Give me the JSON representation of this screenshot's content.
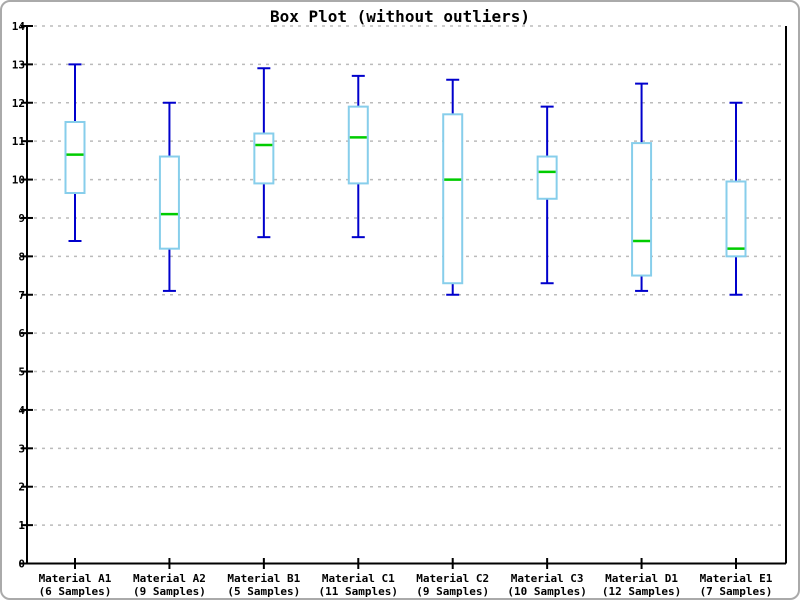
{
  "chart_data": {
    "type": "boxplot",
    "title": "Box Plot (without outliers)",
    "categories": [
      "Material A1",
      "Material A2",
      "Material B1",
      "Material C1",
      "Material C2",
      "Material C3",
      "Material D1",
      "Material E1"
    ],
    "sample_labels": [
      "(6 Samples)",
      "(9 Samples)",
      "(5 Samples)",
      "(11 Samples)",
      "(9 Samples)",
      "(10 Samples)",
      "(12 Samples)",
      "(7 Samples)"
    ],
    "sample_counts": [
      6,
      9,
      5,
      11,
      9,
      10,
      12,
      7
    ],
    "boxes": [
      {
        "category": "Material A1",
        "min": 8.4,
        "q1": 9.65,
        "median": 10.65,
        "q3": 11.5,
        "max": 13.0
      },
      {
        "category": "Material A2",
        "min": 7.1,
        "q1": 8.2,
        "median": 9.1,
        "q3": 10.6,
        "max": 12.0
      },
      {
        "category": "Material B1",
        "min": 8.5,
        "q1": 9.9,
        "median": 10.9,
        "q3": 11.2,
        "max": 12.9
      },
      {
        "category": "Material C1",
        "min": 8.5,
        "q1": 9.9,
        "median": 11.1,
        "q3": 11.9,
        "max": 12.7
      },
      {
        "category": "Material C2",
        "min": 7.0,
        "q1": 7.3,
        "median": 10.0,
        "q3": 11.7,
        "max": 12.6
      },
      {
        "category": "Material C3",
        "min": 7.3,
        "q1": 9.5,
        "median": 10.2,
        "q3": 10.6,
        "max": 11.9
      },
      {
        "category": "Material D1",
        "min": 7.1,
        "q1": 7.5,
        "median": 8.4,
        "q3": 10.95,
        "max": 12.5
      },
      {
        "category": "Material E1",
        "min": 7.0,
        "q1": 8.0,
        "median": 8.2,
        "q3": 9.95,
        "max": 12.0
      }
    ],
    "ylim": [
      0,
      14
    ],
    "ytick_step": 1,
    "xlabel": "",
    "ylabel": "",
    "grid": "horizontal-dashed",
    "legend": "none",
    "colors": {
      "whisker": "#0000CC",
      "box_border": "#87CEEB",
      "box_fill": "#FFFFFF",
      "median": "#00CC00",
      "gridline": "#BBBBBB",
      "axis": "#000000",
      "text": "#000000",
      "background": "#FFFFFF",
      "frame_border": "#AAAAAA"
    }
  }
}
